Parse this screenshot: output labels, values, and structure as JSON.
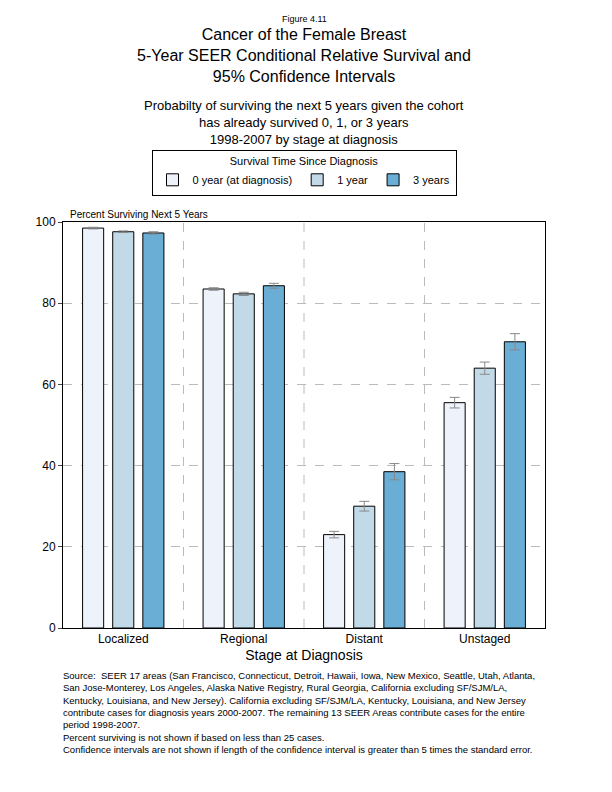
{
  "chart_data": {
    "type": "bar",
    "figure_label": "Figure 4.11",
    "title": [
      "Cancer of the Female Breast",
      "5-Year SEER Conditional Relative Survival and",
      "95% Confidence Intervals"
    ],
    "subtitle": [
      "Probabilty of surviving the next 5 years given the cohort",
      "has already survived 0, 1, or 3 years",
      "1998-2007 by stage at diagnosis"
    ],
    "legend_title": "Survival Time Since Diagnosis",
    "legend": "top",
    "y_label": "Percent Surviving Next 5 Years",
    "x_label": "Stage at Diagnosis",
    "categories": [
      "Localized",
      "Regional",
      "Distant",
      "Unstaged"
    ],
    "series": [
      {
        "name": "0 year (at diagnosis)",
        "color": "#eef2fb",
        "values": [
          98.5,
          83.5,
          23.0,
          55.5
        ],
        "errors": [
          0.2,
          0.3,
          0.8,
          1.3
        ]
      },
      {
        "name": "1 year",
        "color": "#c2d9e8",
        "values": [
          97.6,
          82.3,
          30.0,
          64.0
        ],
        "errors": [
          0.2,
          0.4,
          1.2,
          1.5
        ]
      },
      {
        "name": "3 years",
        "color": "#6aaed6",
        "values": [
          97.3,
          84.3,
          38.5,
          70.5
        ],
        "errors": [
          0.3,
          0.6,
          2.0,
          2.0
        ]
      }
    ],
    "ylim": [
      0,
      100
    ],
    "yticks": [
      0,
      20,
      40,
      60,
      80,
      100
    ],
    "grid": true,
    "notes": [
      "Source:  SEER 17 areas (San Francisco, Connecticut, Detroit, Hawaii, Iowa, New Mexico, Seattle, Utah, Atlanta,",
      "San Jose-Monterey, Los Angeles, Alaska Native Registry, Rural Georgia, California excluding SF/SJM/LA,",
      "Kentucky, Louisiana, and New Jersey). California excluding SF/SJM/LA, Kentucky, Louisiana, and New Jersey",
      "contribute cases for diagnosis years 2000-2007. The remaining 13 SEER Areas contribute cases for the entire",
      "period 1998-2007.",
      "Percent surviving is not shown if based on less than 25 cases.",
      "Confidence intervals are not shown if length of the confidence interval is greater than 5 times the standard error."
    ]
  }
}
